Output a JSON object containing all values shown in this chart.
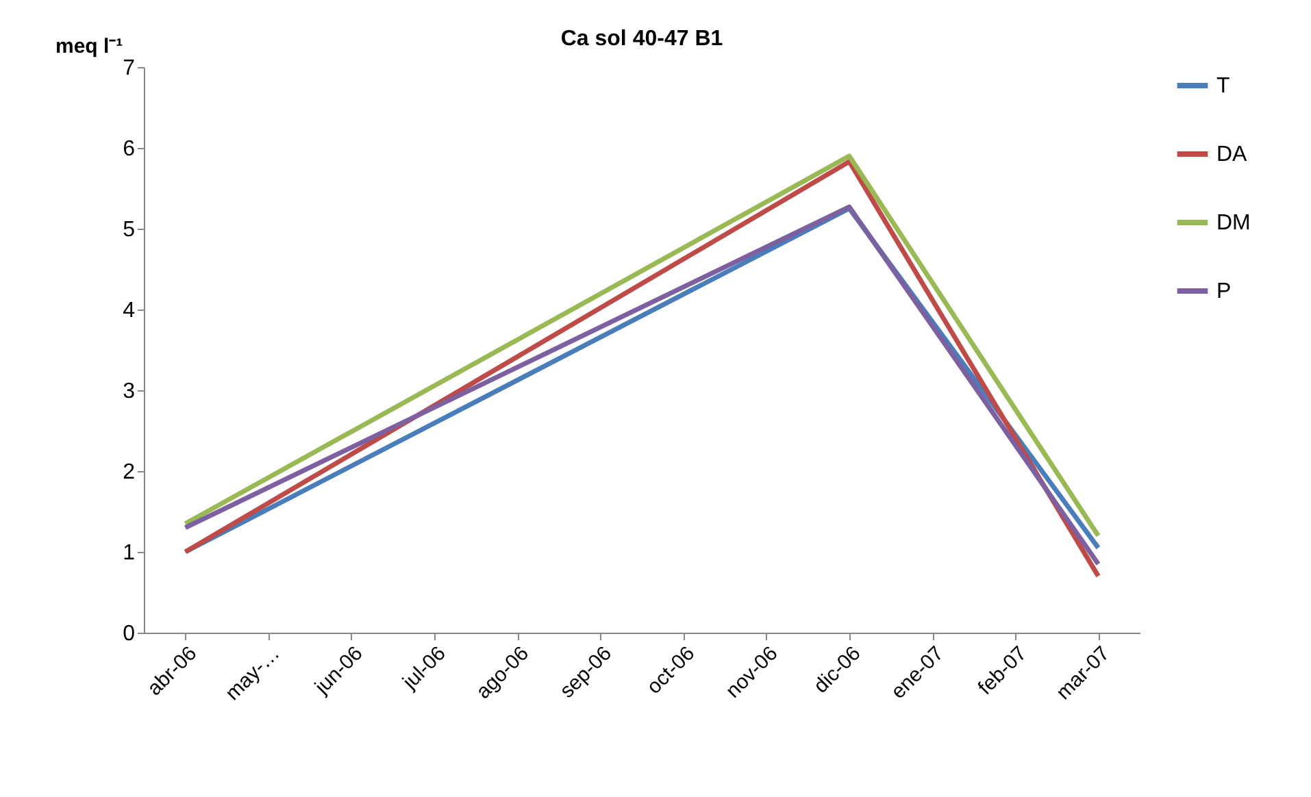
{
  "chart_data": {
    "type": "line",
    "title": "Ca sol 40-47 B1",
    "ylabel": "meq l⁻¹",
    "categories": [
      "abr-06",
      "may-…",
      "jun-06",
      "jul-06",
      "ago-06",
      "sep-06",
      "oct-06",
      "nov-06",
      "dic-06",
      "ene-07",
      "feb-07",
      "mar-07"
    ],
    "series": [
      {
        "name": "T",
        "color": "#4a7ebb",
        "values": [
          1.0,
          null,
          null,
          null,
          null,
          null,
          null,
          null,
          5.25,
          null,
          null,
          1.05
        ]
      },
      {
        "name": "DA",
        "color": "#be4b48",
        "values": [
          1.0,
          null,
          null,
          null,
          null,
          null,
          null,
          null,
          5.83,
          null,
          null,
          0.7
        ]
      },
      {
        "name": "DM",
        "color": "#98b954",
        "values": [
          1.35,
          null,
          null,
          null,
          null,
          null,
          null,
          null,
          5.9,
          null,
          null,
          1.2
        ]
      },
      {
        "name": "P",
        "color": "#7d60a0",
        "values": [
          1.3,
          null,
          null,
          null,
          null,
          null,
          null,
          null,
          5.27,
          null,
          null,
          0.85
        ]
      }
    ],
    "ylim": [
      0,
      7
    ],
    "yticks": [
      0,
      1,
      2,
      3,
      4,
      5,
      6,
      7
    ],
    "grid": false,
    "legend": "right",
    "marker": "none"
  }
}
